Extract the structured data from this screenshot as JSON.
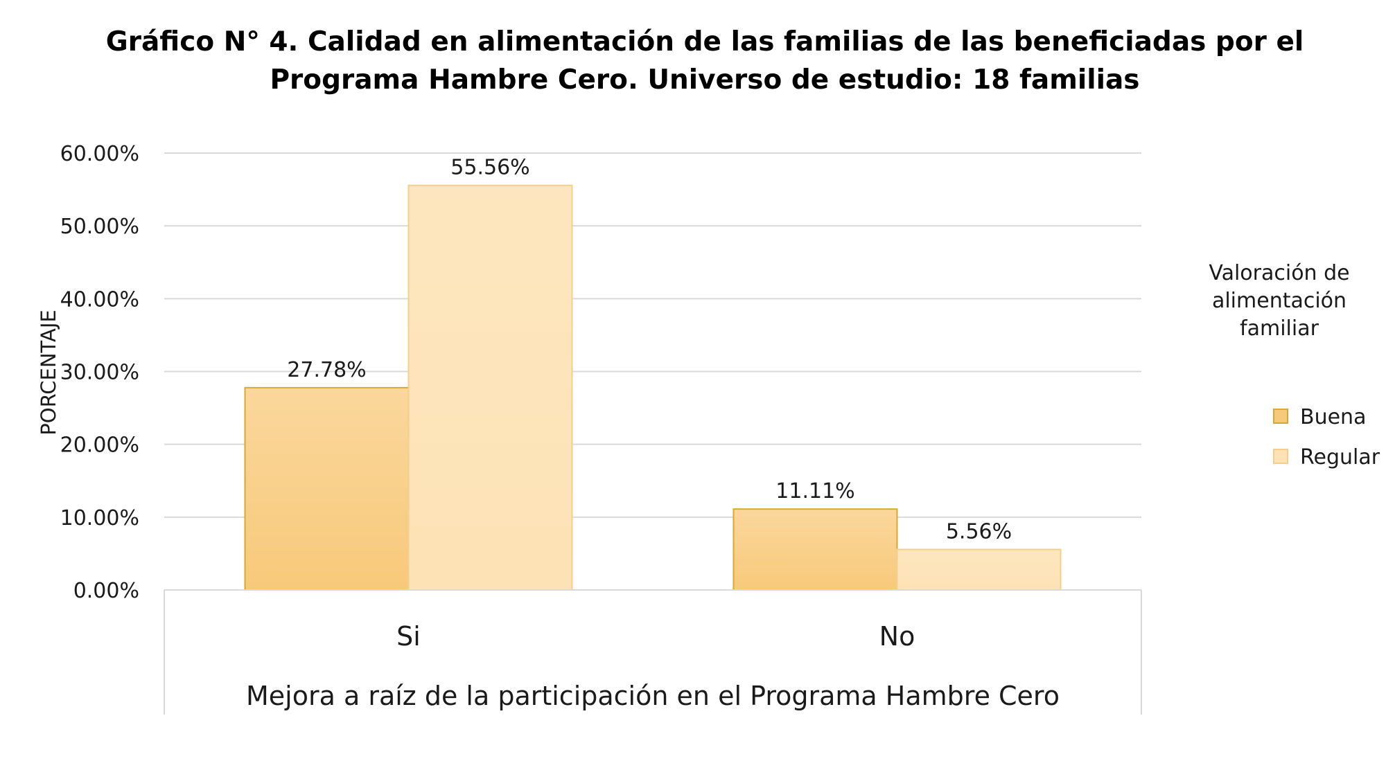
{
  "chart_data": {
    "type": "bar",
    "title": [
      "Gráfico N° 4. Calidad en alimentación de las familias de las beneficiadas por el",
      "Programa Hambre Cero. Universo de estudio: 18 familias"
    ],
    "xlabel": "Mejora a raíz de la participación en el Programa Hambre Cero",
    "ylabel": "PORCENTAJE",
    "categories": [
      "Si",
      "No"
    ],
    "series": [
      {
        "name": "Buena",
        "values": [
          27.78,
          11.11
        ],
        "labels": [
          "27.78%",
          "11.11%"
        ],
        "color": "#f7c97a",
        "border": "#d9a82e"
      },
      {
        "name": "Regular",
        "values": [
          55.56,
          5.56
        ],
        "labels": [
          "55.56%",
          "5.56%"
        ],
        "color": "#fde2b5",
        "border": "#f3cf8c"
      }
    ],
    "ylim": [
      0,
      60
    ],
    "yticks": [
      "0.00%",
      "10.00%",
      "20.00%",
      "30.00%",
      "40.00%",
      "50.00%",
      "60.00%"
    ],
    "grid": true,
    "legend": {
      "title": [
        "Valoración de",
        "alimentación",
        "familiar"
      ],
      "placement": "right"
    }
  }
}
